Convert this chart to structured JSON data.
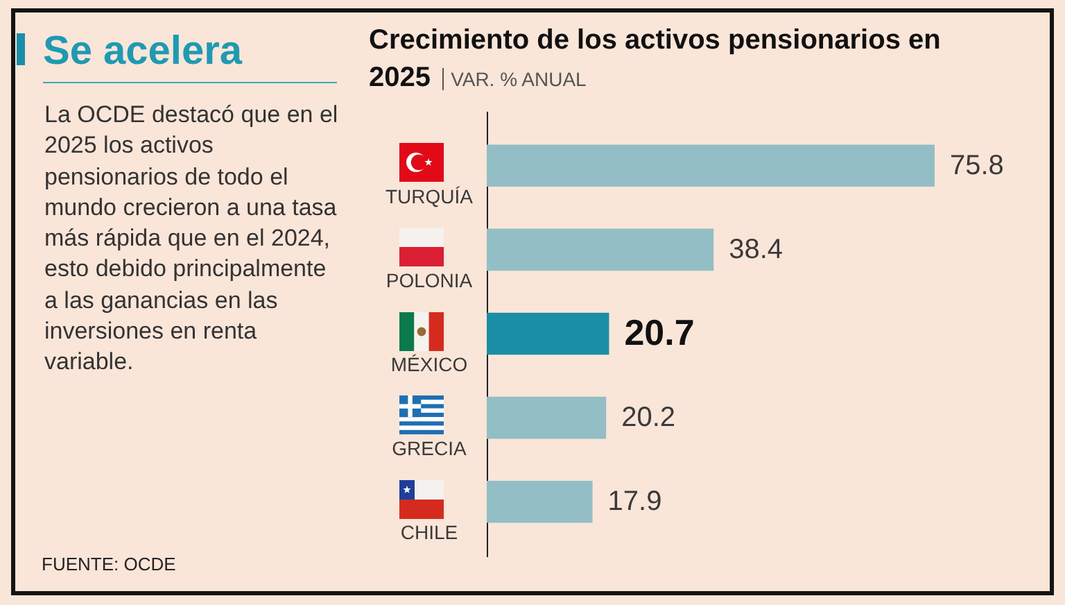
{
  "chart_data": [
    {
      "type": "other",
      "title": "Se acelera",
      "annotations": [
        "La OCDE destacó que en el 2025 los activos pensionarios de todo el mundo crecieron a una tasa más rápida que en el 2024, esto debido principalmente a las ganancias en las inversiones en renta variable.",
        "FUENTE: OCDE"
      ]
    },
    {
      "type": "bar",
      "orientation": "horizontal",
      "title": "Crecimiento de los activos pensionarios en 2025",
      "subtitle": "VAR. % ANUAL",
      "categories": [
        "TURQUÍA",
        "POLONIA",
        "MÉXICO",
        "GRECIA",
        "CHILE"
      ],
      "values": [
        75.8,
        38.4,
        20.7,
        20.2,
        17.9
      ],
      "colors": [
        "#93bec6",
        "#93bec6",
        "#1a8ea4",
        "#93bec6",
        "#93bec6"
      ],
      "data_labels": true,
      "tick_labels": "y"
    }
  ]
}
